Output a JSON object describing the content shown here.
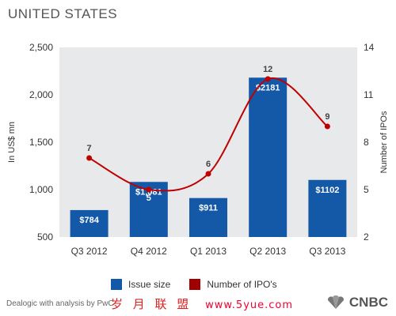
{
  "header": {
    "title": "UNITED STATES"
  },
  "chart_data": {
    "type": "bar",
    "title": "UNITED STATES",
    "categories": [
      "Q3 2012",
      "Q4 2012",
      "Q1 2013",
      "Q2 2013",
      "Q3 2013"
    ],
    "series": [
      {
        "name": "Issue size",
        "type": "bar",
        "axis": "left",
        "values": [
          784,
          1081,
          911,
          2181,
          1102
        ],
        "labels": [
          "$784",
          "$1,081",
          "$911",
          "$2181",
          "$1102"
        ],
        "color": "#1458a8"
      },
      {
        "name": "Number of IPO's",
        "type": "line",
        "axis": "right",
        "values": [
          7,
          5,
          6,
          12,
          9
        ],
        "labels": [
          "7",
          "5",
          "6",
          "12",
          "9"
        ],
        "color": "#c00000"
      }
    ],
    "ylabel": "In US$ mn",
    "ylabel_right": "Number of IPOs",
    "ylim": [
      500,
      2500
    ],
    "yticks": [
      "500",
      "1,000",
      "1,500",
      "2,000",
      "2,500"
    ],
    "ylim_right": [
      2,
      14
    ],
    "yticks_right": [
      "2",
      "5",
      "8",
      "11",
      "14"
    ],
    "grid": false,
    "legend_position": "bottom"
  },
  "footer": {
    "source": "Dealogic with analysis by PwC",
    "watermark_cn": "岁 月 联 盟",
    "watermark_url": "www.5yue.com",
    "brand": "CNBC"
  }
}
